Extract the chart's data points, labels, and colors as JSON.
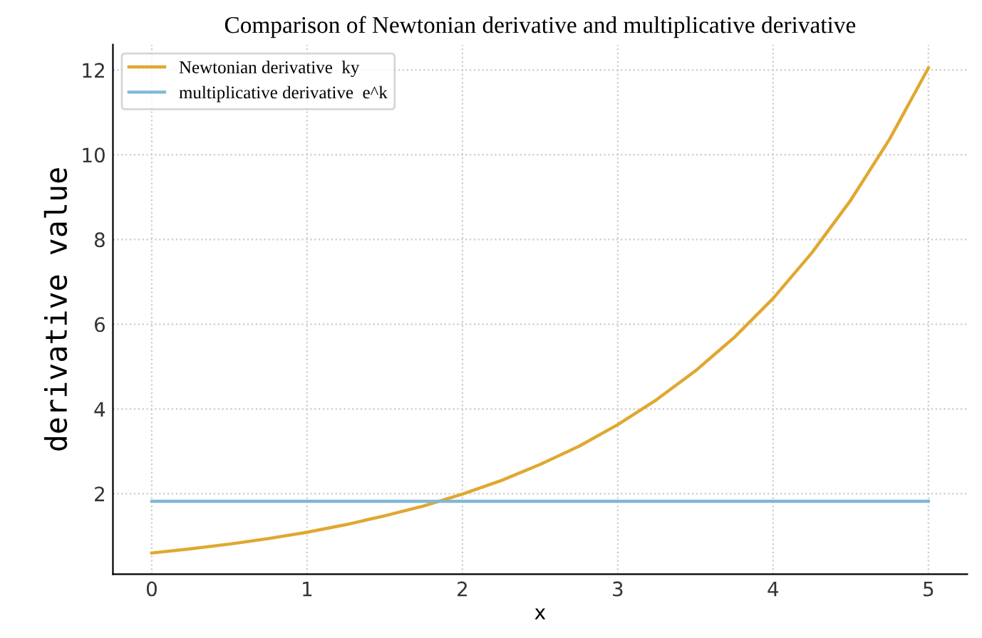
{
  "chart_data": {
    "type": "line",
    "title": "Comparison of Newtonian derivative and multiplicative derivative",
    "xlabel": "x",
    "ylabel": "derivative value",
    "x": [
      0,
      0.25,
      0.5,
      0.75,
      1,
      1.25,
      1.5,
      1.75,
      2,
      2.25,
      2.5,
      2.75,
      3,
      3.25,
      3.5,
      3.75,
      4,
      4.25,
      4.5,
      4.75,
      5
    ],
    "series": [
      {
        "name": "Newtonian derivative  ky",
        "color": "#e0a830",
        "values": [
          0.6,
          0.7,
          0.81,
          0.94,
          1.09,
          1.27,
          1.48,
          1.71,
          1.99,
          2.31,
          2.69,
          3.12,
          3.63,
          4.22,
          4.9,
          5.69,
          6.61,
          7.69,
          8.93,
          10.37,
          12.05
        ]
      },
      {
        "name": "multiplicative derivative  e^k",
        "color": "#7fb8d4",
        "values": [
          1.82,
          1.82,
          1.82,
          1.82,
          1.82,
          1.82,
          1.82,
          1.82,
          1.82,
          1.82,
          1.82,
          1.82,
          1.82,
          1.82,
          1.82,
          1.82,
          1.82,
          1.82,
          1.82,
          1.82,
          1.82
        ]
      }
    ],
    "xlim": [
      -0.25,
      5.25
    ],
    "ylim": [
      0.1,
      12.6
    ],
    "xticks": [
      0,
      1,
      2,
      3,
      4,
      5
    ],
    "yticks": [
      2,
      4,
      6,
      8,
      10,
      12
    ],
    "grid": true,
    "legend": "top left",
    "line_style": "solid",
    "marker": "none"
  }
}
